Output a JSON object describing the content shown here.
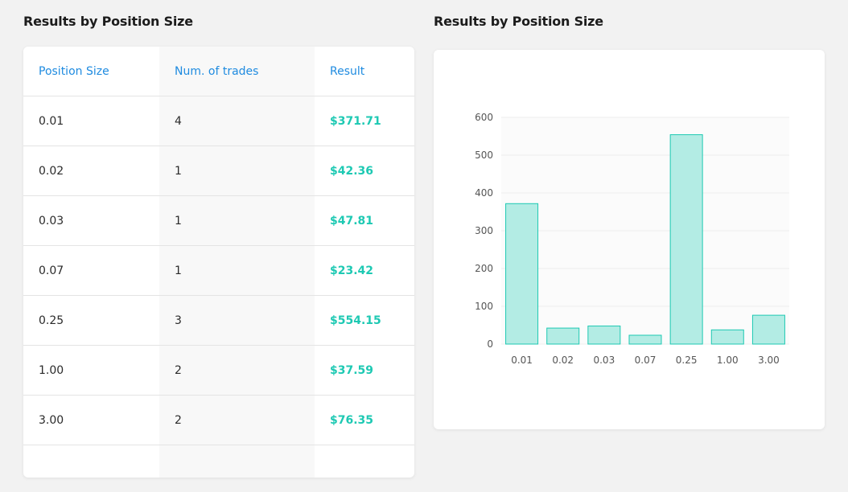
{
  "left_panel": {
    "title": "Results by Position Size",
    "columns": [
      "Position Size",
      "Num. of trades",
      "Result"
    ],
    "rows": [
      {
        "size": "0.01",
        "trades": "4",
        "result": "$371.71"
      },
      {
        "size": "0.02",
        "trades": "1",
        "result": "$42.36"
      },
      {
        "size": "0.03",
        "trades": "1",
        "result": "$47.81"
      },
      {
        "size": "0.07",
        "trades": "1",
        "result": "$23.42"
      },
      {
        "size": "0.25",
        "trades": "3",
        "result": "$554.15"
      },
      {
        "size": "1.00",
        "trades": "2",
        "result": "$37.59"
      },
      {
        "size": "3.00",
        "trades": "2",
        "result": "$76.35"
      }
    ]
  },
  "right_panel": {
    "title": "Results by Position Size"
  },
  "colors": {
    "header_text": "#1f8be0",
    "result_text": "#1ec9b3",
    "bar_fill": "#b3ece4",
    "bar_stroke": "#1ec9b3"
  },
  "chart_data": {
    "type": "bar",
    "categories": [
      "0.01",
      "0.02",
      "0.03",
      "0.07",
      "0.25",
      "1.00",
      "3.00"
    ],
    "values": [
      371.71,
      42.36,
      47.81,
      23.42,
      554.15,
      37.59,
      76.35
    ],
    "yticks": [
      0,
      100,
      200,
      300,
      400,
      500,
      600
    ],
    "ylim": [
      0,
      600
    ],
    "grid": true,
    "legend": "none"
  }
}
